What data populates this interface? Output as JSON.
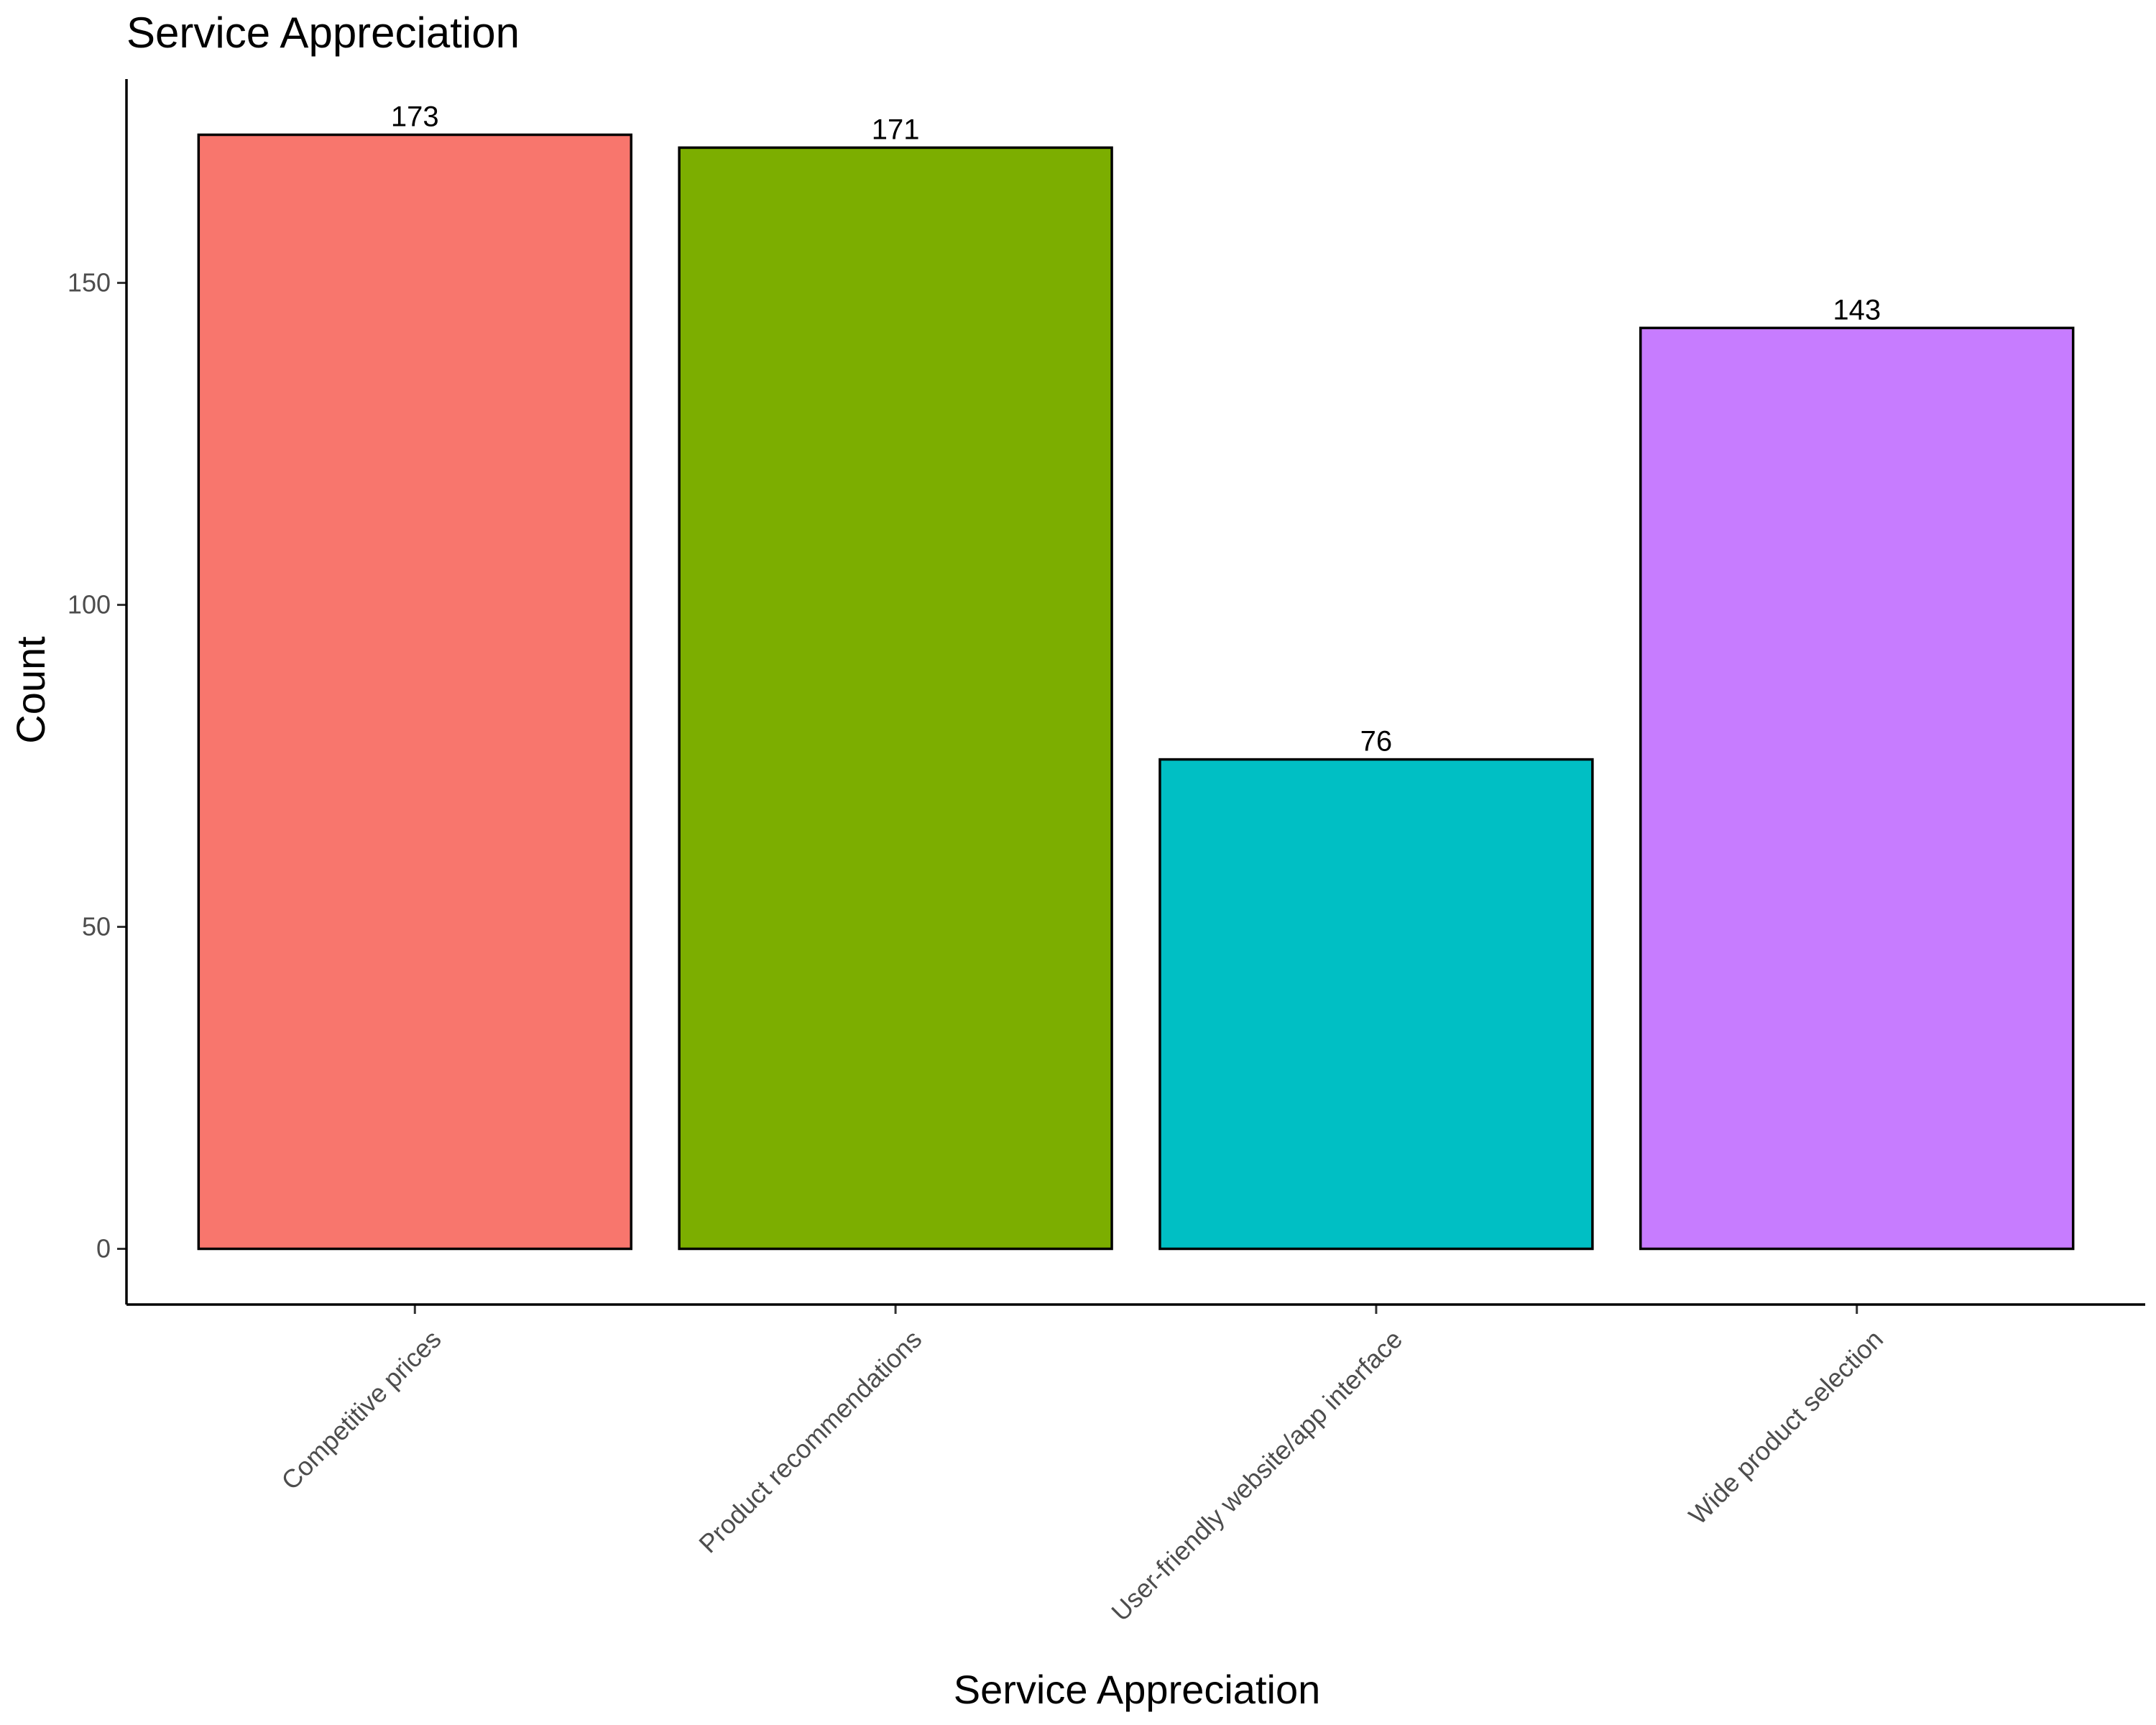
{
  "chart_data": {
    "type": "bar",
    "title": "Service Appreciation",
    "xlabel": "Service Appreciation",
    "ylabel": "Count",
    "categories": [
      "Competitive prices",
      "Product recommendations",
      "User-friendly website/app interface",
      "Wide product selection"
    ],
    "values": [
      173,
      171,
      76,
      143
    ],
    "colors": [
      "#F8766D",
      "#7CAE00",
      "#00BFC4",
      "#C77CFF"
    ],
    "ylim": [
      -8.65,
      181.65
    ],
    "yticks": [
      0,
      50,
      100,
      150
    ],
    "ytick_labels": [
      "0",
      "50",
      "100",
      "150"
    ],
    "data_labels": [
      "173",
      "171",
      "76",
      "143"
    ],
    "grid": false,
    "legend": "none"
  }
}
